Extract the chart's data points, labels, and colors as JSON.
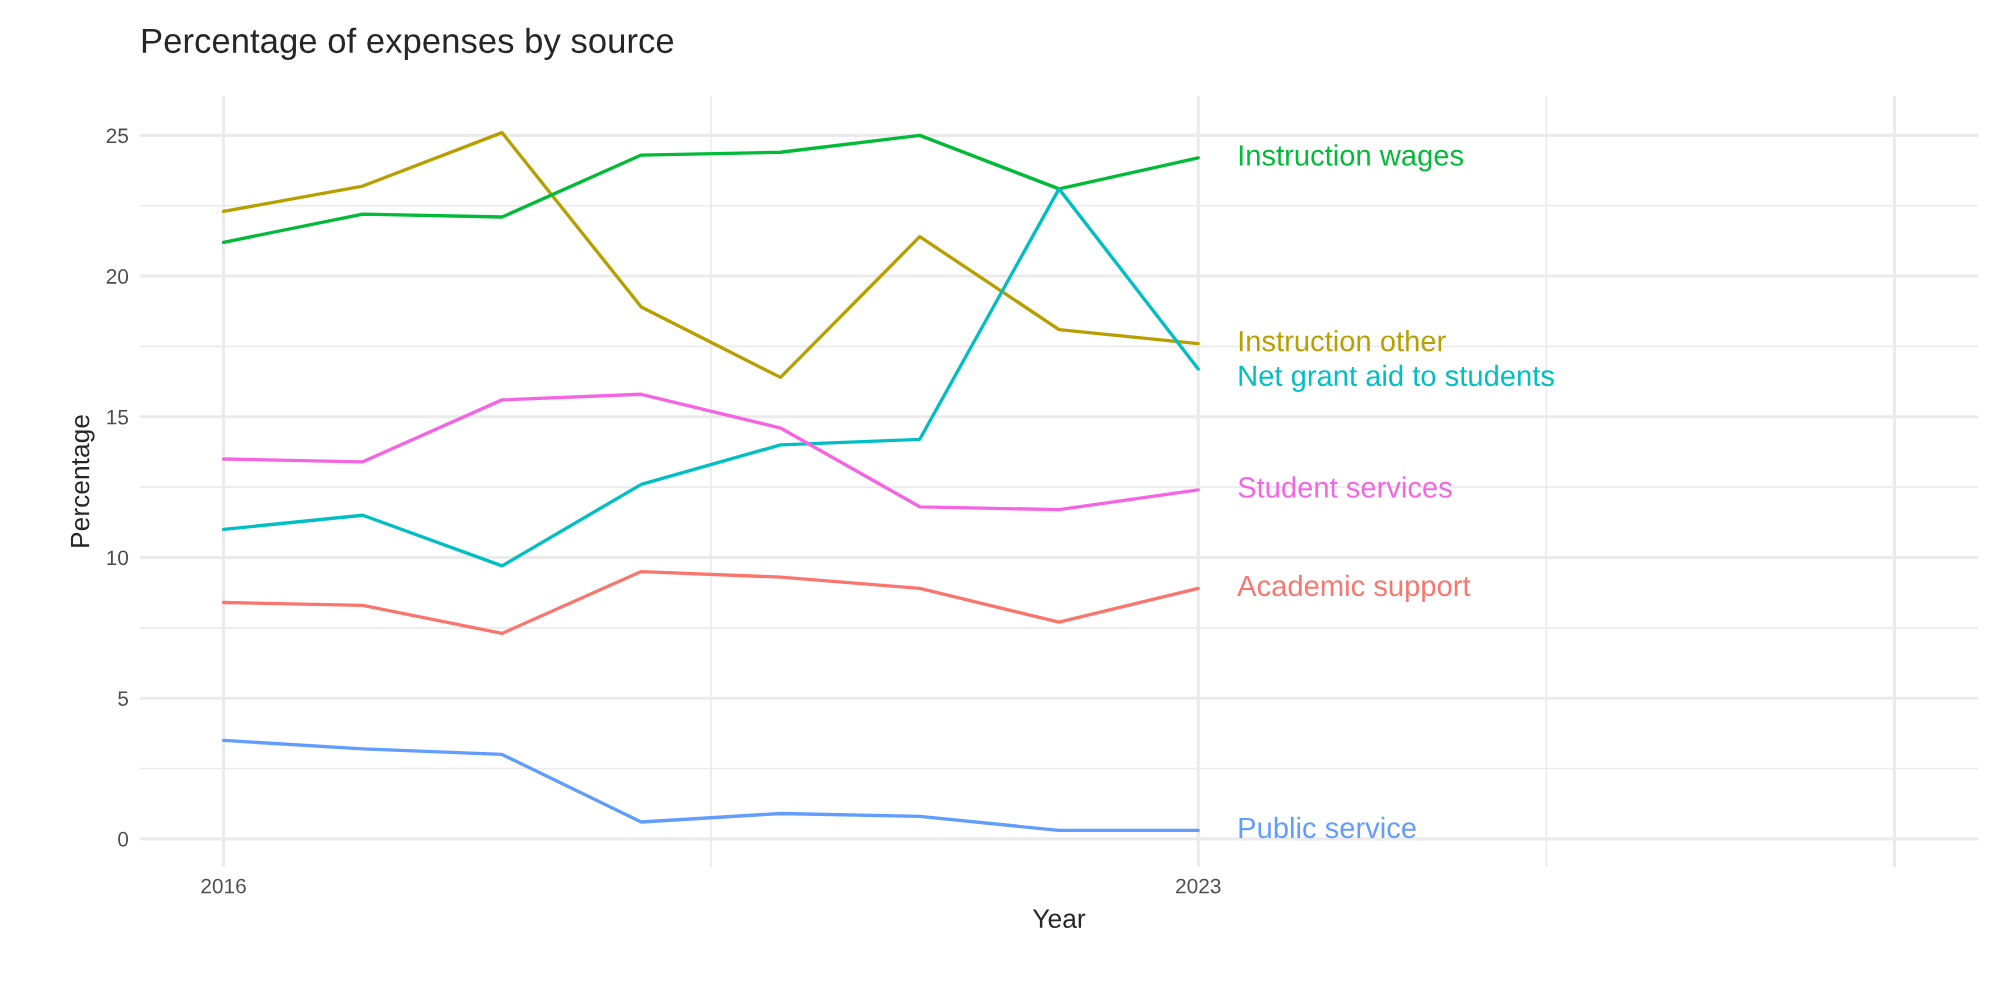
{
  "chart_data": {
    "type": "line",
    "title": "Percentage of expenses by source",
    "xlabel": "Year",
    "ylabel": "Percentage",
    "x": [
      2016,
      2017,
      2018,
      2019,
      2020,
      2021,
      2022,
      2023
    ],
    "series": [
      {
        "name": "Academic support",
        "color": "#f8766d",
        "values": [
          8.4,
          8.3,
          7.3,
          9.5,
          9.3,
          8.9,
          7.7,
          8.9
        ]
      },
      {
        "name": "Instruction other",
        "color": "#b79f00",
        "values": [
          22.3,
          23.2,
          25.1,
          18.9,
          16.4,
          21.4,
          18.1,
          17.6
        ]
      },
      {
        "name": "Instruction wages",
        "color": "#00ba38",
        "values": [
          21.2,
          22.2,
          22.1,
          24.3,
          24.4,
          25.0,
          23.1,
          24.2
        ]
      },
      {
        "name": "Net grant aid to students",
        "color": "#00bfc4",
        "values": [
          11.0,
          11.5,
          9.7,
          12.6,
          14.0,
          14.2,
          23.1,
          16.7
        ]
      },
      {
        "name": "Public service",
        "color": "#619cff",
        "values": [
          3.5,
          3.2,
          3.0,
          0.6,
          0.9,
          0.8,
          0.3,
          0.3
        ]
      },
      {
        "name": "Student services",
        "color": "#f564e3",
        "values": [
          13.5,
          13.4,
          15.6,
          15.8,
          14.6,
          11.8,
          11.7,
          12.4
        ]
      }
    ],
    "xlim": [
      2015.4,
      2028.6
    ],
    "xticks": [
      2016,
      2023,
      {
        "value": 2028,
        "label": null
      }
    ],
    "ylim": [
      -1.0,
      26.4
    ],
    "yticks": [
      0,
      5,
      10,
      15,
      20,
      25
    ],
    "grid": true,
    "line_style": "solid"
  }
}
